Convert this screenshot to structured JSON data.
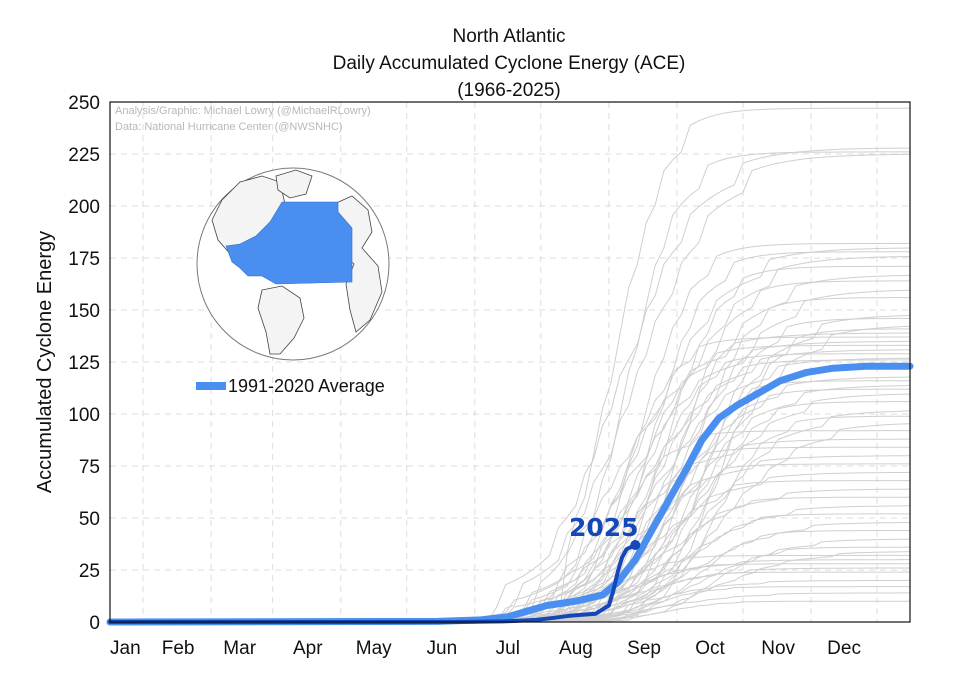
{
  "chart_data": {
    "type": "line",
    "title": [
      "North Atlantic",
      "Daily Accumulated Cyclone Energy (ACE)",
      "(1966-2025)"
    ],
    "ylabel": "Accumulated Cyclone Energy",
    "xlabel": "",
    "ylim": [
      0,
      250
    ],
    "yticks": [
      0,
      25,
      50,
      75,
      100,
      125,
      150,
      175,
      200,
      225,
      250
    ],
    "xticks": [
      "Jan",
      "Feb",
      "Mar",
      "Apr",
      "May",
      "Jun",
      "Jul",
      "Aug",
      "Sep",
      "Oct",
      "Nov",
      "Dec"
    ],
    "grid": true,
    "credits": [
      "Analysis/Graphic: Michael Lowry (@MichaelRLowry)",
      "Data: National Hurricane Center (@NWSNHC)"
    ],
    "legend": {
      "placement": "upper-left",
      "entries": [
        "1991-2020 Average"
      ]
    },
    "series": [
      {
        "name": "1991-2020 Average",
        "color": "#4a8ff0",
        "x_day": [
          1,
          150,
          170,
          182,
          190,
          200,
          213,
          225,
          232,
          240,
          248,
          256,
          263,
          270,
          278,
          286,
          296,
          306,
          318,
          330,
          345,
          365
        ],
        "values": [
          0,
          0.3,
          1,
          2.5,
          5,
          8,
          10,
          13,
          19,
          30,
          45,
          60,
          73,
          87,
          98,
          104,
          110,
          116,
          120,
          122,
          123,
          123
        ]
      },
      {
        "name": "2025",
        "color": "#1447b8",
        "x_day": [
          1,
          160,
          180,
          195,
          203,
          210,
          222,
          228,
          230,
          232,
          234,
          236,
          240
        ],
        "values": [
          0,
          0,
          0.3,
          1,
          2,
          3,
          4,
          8,
          15,
          24,
          31,
          35,
          37
        ]
      }
    ],
    "historical_seasons": {
      "color": "#cfcfcf",
      "final_totals": [
        247,
        228,
        226,
        225,
        182,
        180,
        178,
        176,
        171,
        167,
        164,
        160,
        156,
        148,
        146,
        143,
        141,
        139,
        137,
        135,
        133,
        131,
        129,
        127,
        126,
        118,
        116,
        114,
        112,
        110,
        106,
        102,
        99,
        96,
        92,
        88,
        84,
        80,
        76,
        72,
        68,
        64,
        60,
        56,
        52,
        48,
        44,
        40,
        36,
        34,
        32,
        30,
        28,
        26,
        24,
        20,
        17,
        14,
        10
      ]
    }
  }
}
